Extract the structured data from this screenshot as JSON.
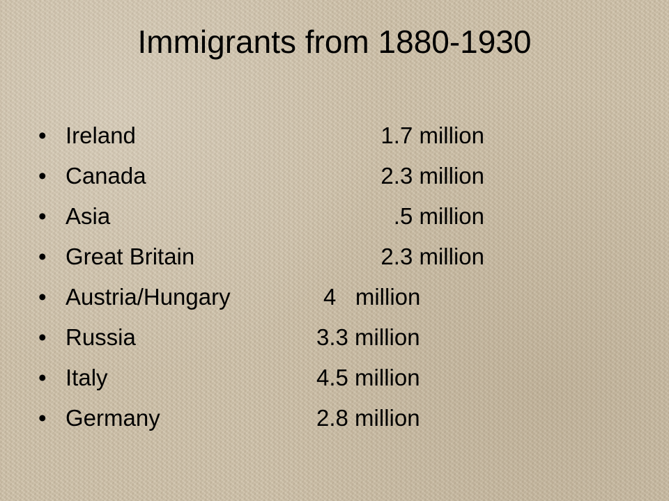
{
  "slide": {
    "title": "Immigrants from 1880-1930",
    "bullet_glyph": "•",
    "items": [
      {
        "country": "Ireland",
        "amount": "1.7 million"
      },
      {
        "country": "Canada",
        "amount": "2.3 million"
      },
      {
        "country": "Asia",
        "amount": ".5 million"
      },
      {
        "country": "Great Britain",
        "amount": "2.3 million"
      },
      {
        "country": "Austria/Hungary",
        "amount": "4   million"
      },
      {
        "country": "Russia",
        "amount": "3.3 million"
      },
      {
        "country": "Italy",
        "amount": "4.5 million"
      },
      {
        "country": "Germany",
        "amount": "2.8 million"
      }
    ]
  },
  "colors": {
    "background": "#cdbfa6",
    "text": "#000000"
  }
}
